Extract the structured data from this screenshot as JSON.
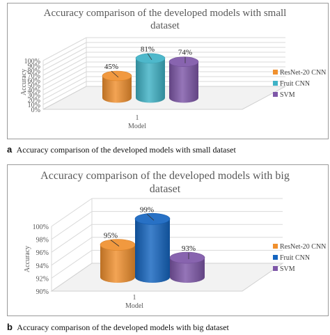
{
  "figures": [
    {
      "caption_label": "a",
      "caption_text": "Accuracy comparison of the developed models with small dataset"
    },
    {
      "caption_label": "b",
      "caption_text": "Accuracy comparison of the developed models with big dataset"
    }
  ],
  "chart_data": [
    {
      "type": "bar",
      "title_line1": "Accuracy comparison of the developed models with small",
      "title_line2": "dataset",
      "xlabel": "Model",
      "ylabel": "Accuracy",
      "categories": [
        "1"
      ],
      "ylim": [
        0,
        1
      ],
      "yticks": [
        "0%",
        "10%",
        "20%",
        "30%",
        "40%",
        "50%",
        "60%",
        "70%",
        "80%",
        "90%",
        "100%"
      ],
      "grid": true,
      "legend_position": "right",
      "series": [
        {
          "name": "ResNet-20 CNN",
          "values": [
            0.45
          ],
          "label": "45%",
          "color": "#f0902e"
        },
        {
          "name": "Fruit CNN",
          "values": [
            0.81
          ],
          "label": "81%",
          "color": "#3fb2c6"
        },
        {
          "name": "SVM",
          "values": [
            0.74
          ],
          "label": "74%",
          "color": "#7e57a8"
        }
      ]
    },
    {
      "type": "bar",
      "title_line1": "Accuracy comparison of the developed models with big",
      "title_line2": "dataset",
      "xlabel": "Model",
      "ylabel": "Accuracy",
      "categories": [
        "1"
      ],
      "ylim": [
        0.9,
        1.0
      ],
      "yticks": [
        "90%",
        "92%",
        "94%",
        "96%",
        "98%",
        "100%"
      ],
      "grid": true,
      "legend_position": "right",
      "series": [
        {
          "name": "ResNet-20 CNN",
          "values": [
            0.95
          ],
          "label": "95%",
          "color": "#f0902e"
        },
        {
          "name": "Fruit CNN",
          "values": [
            0.99
          ],
          "label": "99%",
          "color": "#1565c0"
        },
        {
          "name": "SVM",
          "values": [
            0.93
          ],
          "label": "93%",
          "color": "#7e57a8"
        }
      ]
    }
  ]
}
